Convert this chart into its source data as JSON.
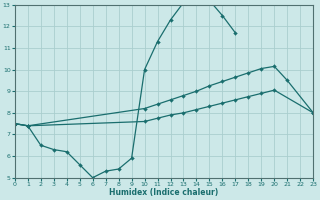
{
  "xlabel": "Humidex (Indice chaleur)",
  "bg_color": "#cce8e8",
  "grid_color": "#aacece",
  "line_color": "#1a6e6e",
  "spine_color": "#507070",
  "xlim": [
    0,
    23
  ],
  "ylim": [
    5,
    13
  ],
  "xticks": [
    0,
    1,
    2,
    3,
    4,
    5,
    6,
    7,
    8,
    9,
    10,
    11,
    12,
    13,
    14,
    15,
    16,
    17,
    18,
    19,
    20,
    21,
    22,
    23
  ],
  "yticks": [
    5,
    6,
    7,
    8,
    9,
    10,
    11,
    12,
    13
  ],
  "line1_x": [
    0,
    1,
    2,
    3,
    4,
    5,
    6,
    7,
    8,
    9,
    10,
    11,
    12,
    13,
    14,
    15,
    16,
    17
  ],
  "line1_y": [
    7.5,
    7.4,
    6.5,
    6.3,
    6.2,
    5.6,
    5.0,
    5.3,
    5.4,
    5.9,
    10.0,
    11.3,
    12.3,
    13.1,
    13.2,
    13.2,
    12.5,
    11.7
  ],
  "line2_x": [
    0,
    1,
    10,
    11,
    12,
    13,
    14,
    15,
    16,
    17,
    18,
    19,
    20,
    21,
    23
  ],
  "line2_y": [
    7.5,
    7.4,
    8.2,
    8.4,
    8.6,
    8.8,
    9.0,
    9.25,
    9.45,
    9.65,
    9.85,
    10.05,
    10.15,
    9.5,
    8.0
  ],
  "line3_x": [
    0,
    1,
    10,
    11,
    12,
    13,
    14,
    15,
    16,
    17,
    18,
    19,
    20,
    23
  ],
  "line3_y": [
    7.5,
    7.4,
    7.6,
    7.75,
    7.9,
    8.0,
    8.15,
    8.3,
    8.45,
    8.6,
    8.75,
    8.9,
    9.05,
    8.0
  ]
}
